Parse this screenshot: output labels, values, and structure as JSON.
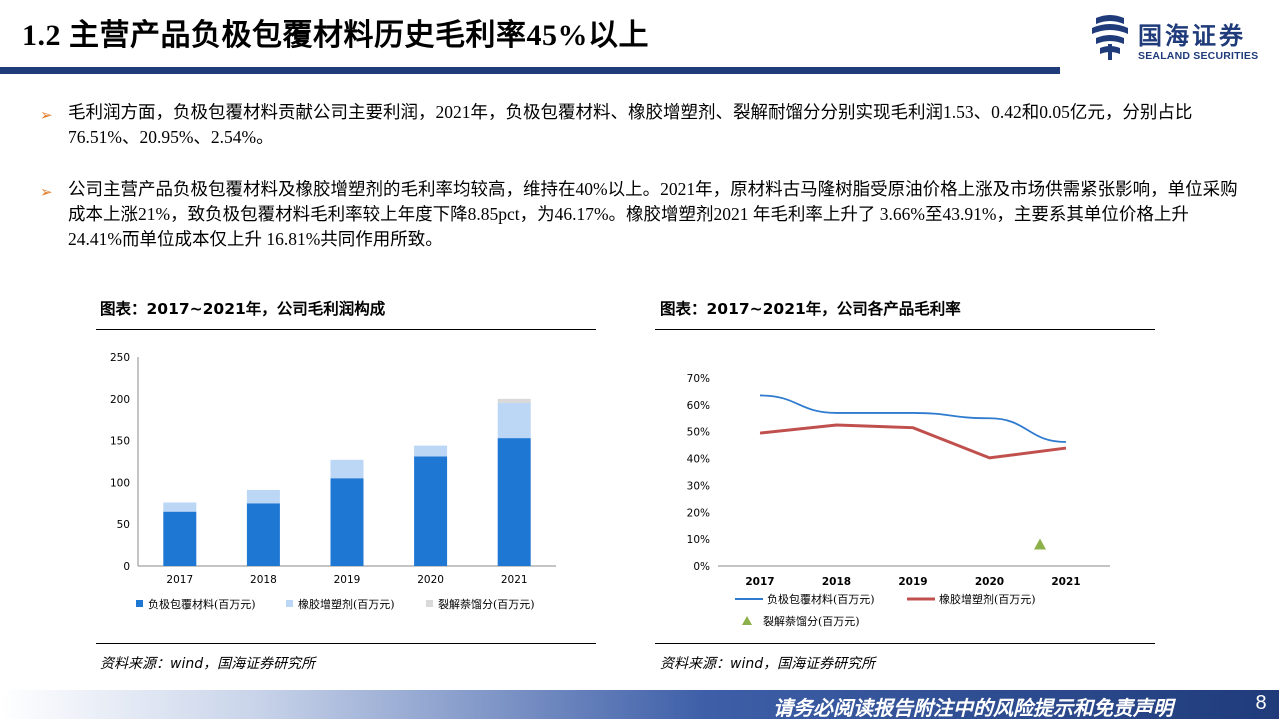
{
  "header": {
    "title": "1.2 主营产品负极包覆材料历史毛利率45%以上",
    "logo_cn": "国海证券",
    "logo_en": "SEALAND SECURITIES"
  },
  "bullets": [
    {
      "marker": "➢",
      "text": "毛利润方面，负极包覆材料贡献公司主要利润，2021年，负极包覆材料、橡胶增塑剂、裂解耐馏分分别实现毛利润1.53、0.42和0.05亿元，分别占比76.51%、20.95%、2.54%。"
    },
    {
      "marker": "➢",
      "text": "公司主营产品负极包覆材料及橡胶增塑剂的毛利率均较高，维持在40%以上。2021年，原材料古马隆树脂受原油价格上涨及市场供需紧张影响，单位采购成本上涨21%，致负极包覆材料毛利率较上年度下降8.85pct，为46.17%。橡胶增塑剂2021 年毛利率上升了 3.66%至43.91%，主要系其单位价格上升 24.41%而单位成本仅上升 16.81%共同作用所致。"
    }
  ],
  "left_panel": {
    "title": "图表：2017~2021年，公司毛利润构成",
    "source": "资料来源：wind，国海证券研究所"
  },
  "right_panel": {
    "title": "图表：2017~2021年，公司各产品毛利率",
    "source": "资料来源：wind，国海证券研究所"
  },
  "footer": {
    "disclaimer": "请务必阅读报告附注中的风险提示和免责声明",
    "page": "8"
  },
  "colors": {
    "brand": "#1f3b7a",
    "series1": "#1f77d4",
    "series2": "#bcd6f5",
    "series3": "#d9d9d9",
    "line1": "#2e7bcf",
    "line2": "#c0504d",
    "marker3": "#8cb04a",
    "bullet": "#e07b2a"
  },
  "chart_data": [
    {
      "type": "bar",
      "stacked": true,
      "categories": [
        "2017",
        "2018",
        "2019",
        "2020",
        "2021"
      ],
      "yticks": [
        "0",
        "50",
        "100",
        "150",
        "200",
        "250"
      ],
      "ylim": [
        0,
        250
      ],
      "series": [
        {
          "name": "负极包覆材料(百万元)",
          "values": [
            65,
            75,
            105,
            131,
            153
          ]
        },
        {
          "name": "橡胶增塑剂(百万元)",
          "values": [
            11,
            16,
            22,
            13,
            42
          ]
        },
        {
          "name": "裂解萘馏分(百万元)",
          "values": [
            0,
            0,
            0,
            0,
            5
          ]
        }
      ],
      "legend_position": "bottom"
    },
    {
      "type": "line",
      "categories": [
        "2017",
        "2018",
        "2019",
        "2020",
        "2021"
      ],
      "yticks": [
        "0%",
        "10%",
        "20%",
        "30%",
        "40%",
        "50%",
        "60%",
        "70%"
      ],
      "ylim": [
        0,
        70
      ],
      "series": [
        {
          "name": "负极包覆材料(百万元)",
          "values": [
            63.5,
            57,
            57,
            55,
            46.17
          ]
        },
        {
          "name": "橡胶增塑剂(百万元)",
          "values": [
            49.5,
            52.5,
            51.5,
            40.25,
            43.91
          ]
        },
        {
          "name": "裂解萘馏分(百万元)",
          "values": [
            null,
            null,
            null,
            null,
            8
          ]
        }
      ],
      "legend_position": "bottom"
    }
  ]
}
